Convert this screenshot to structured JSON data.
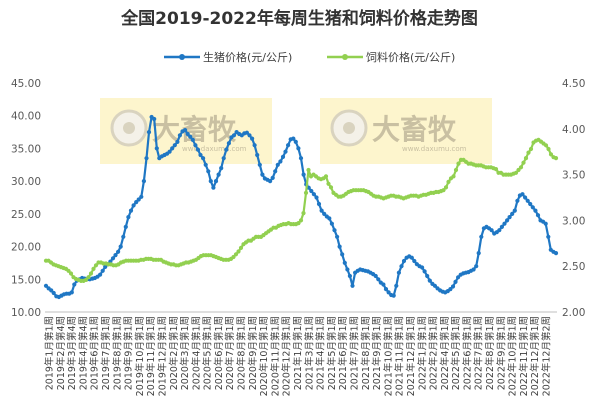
{
  "chart_data": {
    "type": "line",
    "title": "全国2019-2022年每周生猪和饲料价格走势图",
    "legend_position": "top",
    "grid": false,
    "y_left": {
      "range": [
        10,
        45
      ],
      "ticks": [
        "10.00",
        "15.00",
        "20.00",
        "25.00",
        "30.00",
        "35.00",
        "40.00",
        "45.00"
      ]
    },
    "y_right": {
      "range": [
        2.0,
        4.5
      ],
      "ticks": [
        "2.00",
        "2.50",
        "3.00",
        "3.50",
        "4.00",
        "4.50"
      ]
    },
    "x_tick_labels": [
      "2019年1月第1周",
      "2019年2月第4周",
      "2019年3月第4周",
      "2019年4月第4周",
      "2019年6月第1周",
      "2019年7月第1周",
      "2019年8月第1周",
      "2019年9月第1周",
      "2019年10月第1周",
      "2019年11月第1周",
      "2019年12月第1周",
      "2020年2月第1周",
      "2020年3月第1周",
      "2020年4月第1周",
      "2020年5月第1周",
      "2020年6月第1周",
      "2020年7月第1周",
      "2020年8月第1周",
      "2020年9月第1周",
      "2020年10月第1周",
      "2020年11月第1周",
      "2020年12月第1周",
      "2021年1月第1周",
      "2021年3月第1周",
      "2021年4月第1周",
      "2021年5月第1周",
      "2021年6月第1周",
      "2021年7月第1周",
      "2021年8月第1周",
      "2021年9月第1周",
      "2021年10月第1周",
      "2021年11月第1周",
      "2021年12月第1周",
      "2022年1月第1周",
      "2022年2月第1周",
      "2022年4月第1周",
      "2022年5月第1周",
      "2022年6月第1周",
      "2022年7月第1周",
      "2022年8月第1周",
      "2022年9月第1周",
      "2022年10月第1周",
      "2022年11月第1周",
      "2022年12月第1周",
      "2022年12月第2周"
    ],
    "series": [
      {
        "name": "生猪价格(元/公斤)",
        "axis": "left",
        "color": "#1f77c4",
        "values": [
          14.0,
          13.6,
          13.3,
          12.9,
          12.4,
          12.3,
          12.5,
          12.7,
          12.8,
          12.8,
          13.0,
          14.2,
          14.8,
          15.0,
          15.2,
          15.1,
          15.0,
          15.0,
          15.1,
          15.2,
          15.4,
          15.7,
          16.3,
          16.9,
          17.3,
          17.7,
          18.2,
          18.7,
          19.2,
          20.0,
          21.5,
          23.0,
          24.5,
          25.5,
          26.3,
          26.8,
          27.2,
          27.6,
          30.0,
          33.5,
          37.5,
          39.8,
          39.5,
          35.0,
          33.5,
          33.8,
          34.0,
          34.2,
          34.5,
          35.0,
          35.5,
          36.0,
          37.0,
          37.6,
          37.8,
          37.2,
          36.8,
          36.3,
          35.5,
          34.8,
          34.0,
          33.5,
          32.5,
          31.5,
          30.0,
          29.0,
          30.0,
          31.0,
          32.0,
          33.5,
          34.8,
          35.8,
          36.7,
          37.0,
          37.5,
          37.2,
          37.0,
          37.3,
          37.4,
          37.0,
          36.5,
          35.5,
          34.0,
          32.5,
          31.0,
          30.4,
          30.2,
          30.0,
          30.5,
          31.5,
          32.5,
          33.0,
          33.7,
          34.5,
          35.5,
          36.4,
          36.5,
          36.0,
          35.0,
          33.5,
          31.0,
          29.5,
          29.0,
          28.5,
          28.0,
          27.5,
          26.5,
          25.5,
          25.0,
          24.6,
          24.3,
          23.5,
          22.5,
          21.5,
          20.0,
          18.8,
          17.5,
          16.5,
          15.5,
          14.0,
          16.0,
          16.3,
          16.5,
          16.4,
          16.3,
          16.2,
          16.0,
          15.8,
          15.5,
          15.0,
          14.5,
          14.2,
          13.5,
          13.0,
          12.6,
          12.5,
          14.0,
          16.0,
          17.0,
          17.8,
          18.3,
          18.5,
          18.3,
          17.8,
          17.3,
          17.0,
          16.8,
          16.2,
          15.5,
          14.8,
          14.3,
          14.0,
          13.6,
          13.3,
          13.1,
          13.0,
          13.2,
          13.5,
          13.9,
          14.6,
          15.3,
          15.7,
          15.9,
          16.0,
          16.1,
          16.3,
          16.5,
          17.0,
          19.0,
          21.5,
          22.8,
          23.0,
          22.8,
          22.5,
          22.0,
          22.2,
          22.5,
          23.0,
          23.5,
          24.0,
          24.5,
          25.0,
          25.5,
          27.0,
          27.8,
          28.0,
          27.5,
          27.0,
          26.5,
          26.0,
          25.5,
          24.8,
          24.0,
          23.8,
          23.5,
          21.5,
          19.5,
          19.2,
          19.0
        ]
      },
      {
        "name": "饲料价格(元/公斤)",
        "axis": "right",
        "color": "#92d050",
        "values": [
          2.56,
          2.56,
          2.54,
          2.52,
          2.51,
          2.5,
          2.49,
          2.48,
          2.47,
          2.45,
          2.42,
          2.38,
          2.36,
          2.35,
          2.34,
          2.34,
          2.35,
          2.38,
          2.42,
          2.47,
          2.51,
          2.54,
          2.54,
          2.53,
          2.53,
          2.52,
          2.52,
          2.51,
          2.51,
          2.52,
          2.54,
          2.55,
          2.56,
          2.56,
          2.56,
          2.56,
          2.56,
          2.56,
          2.57,
          2.57,
          2.58,
          2.58,
          2.58,
          2.57,
          2.57,
          2.57,
          2.57,
          2.55,
          2.54,
          2.53,
          2.52,
          2.52,
          2.51,
          2.51,
          2.52,
          2.53,
          2.54,
          2.54,
          2.55,
          2.56,
          2.57,
          2.59,
          2.61,
          2.62,
          2.62,
          2.62,
          2.62,
          2.61,
          2.6,
          2.59,
          2.58,
          2.57,
          2.57,
          2.57,
          2.58,
          2.6,
          2.63,
          2.66,
          2.7,
          2.74,
          2.76,
          2.78,
          2.78,
          2.8,
          2.82,
          2.82,
          2.82,
          2.84,
          2.86,
          2.88,
          2.9,
          2.92,
          2.92,
          2.94,
          2.95,
          2.96,
          2.96,
          2.97,
          2.96,
          2.96,
          2.96,
          2.97,
          3.0,
          3.08,
          3.3,
          3.55,
          3.48,
          3.5,
          3.48,
          3.46,
          3.45,
          3.46,
          3.48,
          3.4,
          3.36,
          3.3,
          3.28,
          3.26,
          3.26,
          3.27,
          3.29,
          3.31,
          3.32,
          3.33,
          3.33,
          3.33,
          3.33,
          3.33,
          3.32,
          3.31,
          3.29,
          3.27,
          3.26,
          3.26,
          3.25,
          3.24,
          3.25,
          3.26,
          3.27,
          3.27,
          3.26,
          3.26,
          3.25,
          3.24,
          3.25,
          3.26,
          3.27,
          3.27,
          3.27,
          3.26,
          3.27,
          3.28,
          3.28,
          3.29,
          3.3,
          3.3,
          3.31,
          3.31,
          3.32,
          3.33,
          3.36,
          3.42,
          3.46,
          3.48,
          3.55,
          3.62,
          3.66,
          3.66,
          3.64,
          3.62,
          3.62,
          3.61,
          3.6,
          3.6,
          3.6,
          3.59,
          3.58,
          3.58,
          3.58,
          3.57,
          3.56,
          3.52,
          3.52,
          3.5,
          3.5,
          3.5,
          3.5,
          3.51,
          3.52,
          3.55,
          3.58,
          3.63,
          3.68,
          3.74,
          3.78,
          3.85,
          3.87,
          3.88,
          3.86,
          3.84,
          3.82,
          3.78,
          3.72,
          3.69,
          3.68
        ]
      }
    ]
  },
  "watermarks": [
    {
      "text": "大畜牧",
      "url": "www.daxumu.com"
    },
    {
      "text": "大畜牧",
      "url": "www.daxumu.com"
    }
  ]
}
